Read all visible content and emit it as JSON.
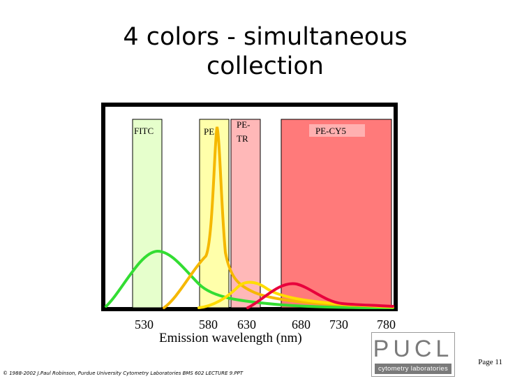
{
  "slide": {
    "title_line1": "4 colors - simultaneous",
    "title_line2": "collection",
    "page_label": "Page 11",
    "footer": "© 1988-2002 J.Paul Robinson, Purdue University Cytometry Laboratories  BMS 602  LECTURE 9.PPT"
  },
  "chart": {
    "x_axis_label": "Emission wavelength (nm)",
    "ticks": [
      "530",
      "580",
      "630",
      "680",
      "730",
      "780"
    ],
    "filters": [
      {
        "name": "FITC",
        "color": "#e6ffcc"
      },
      {
        "name": "PE",
        "color": "#ffffaa"
      },
      {
        "name": "PE-\nTR",
        "line1": "PE-",
        "line2": "TR",
        "color": "#ffb8b8"
      },
      {
        "name": "PE-CY5",
        "color": "#ff7a7a"
      }
    ],
    "curves": [
      {
        "name": "FITC emission",
        "color": "#33dd33"
      },
      {
        "name": "PE emission",
        "color": "#f5b800"
      },
      {
        "name": "PE-TR emission",
        "color": "#ffdd00"
      },
      {
        "name": "PE-CY5 emission",
        "color": "#e8003c"
      }
    ]
  },
  "logo": {
    "letters": "PUCL",
    "subtitle": "cytometry laboratories"
  }
}
